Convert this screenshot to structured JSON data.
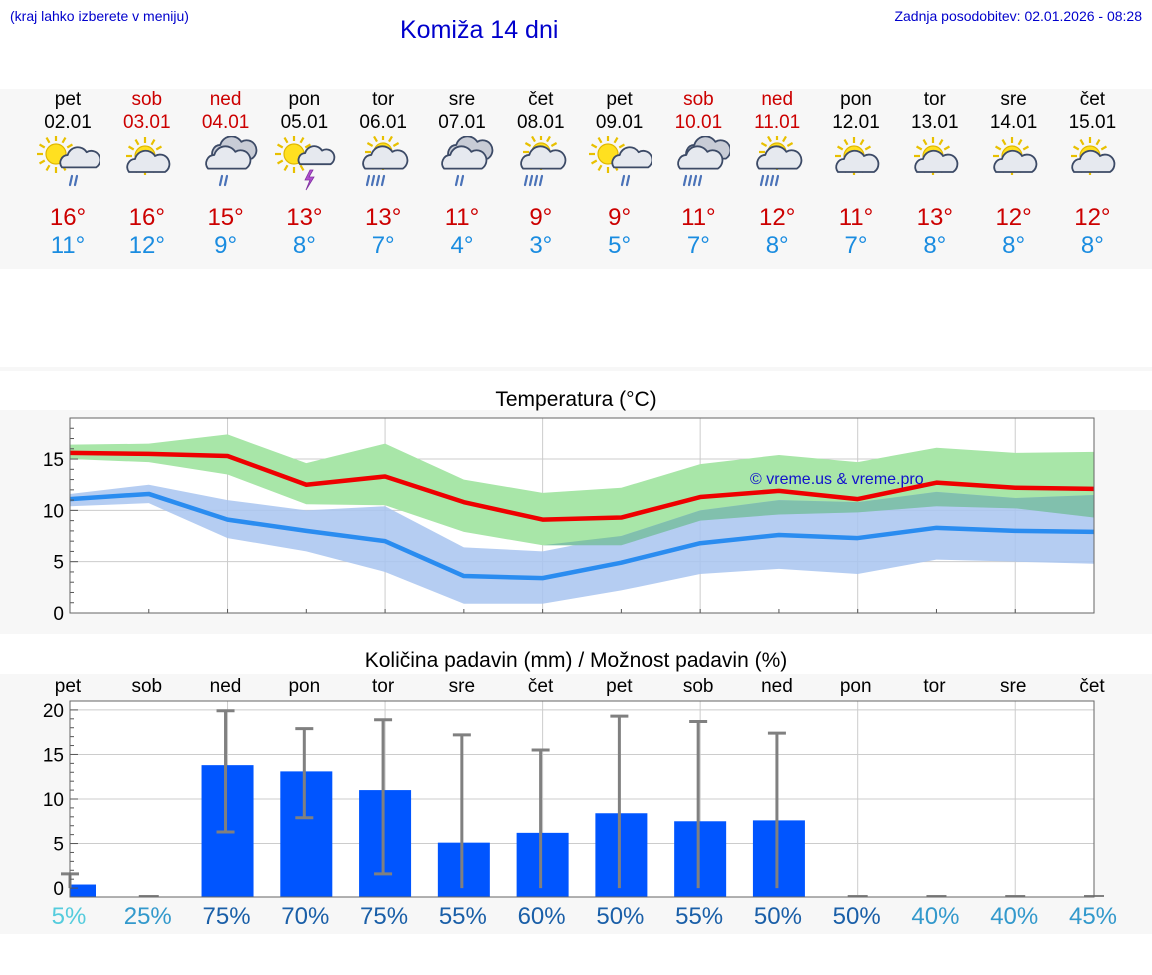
{
  "header": {
    "menu_hint": "(kraj lahko izberete v meniju)",
    "title": "Komiža 14 dni",
    "updated": "Zadnja posodobitev: 02.01.2026 - 08:28"
  },
  "days": [
    {
      "name": "pet",
      "date": "02.01",
      "weekend": false,
      "icon": "sun-cloud-rain-icon",
      "tmax": "16°",
      "tmin": "11°"
    },
    {
      "name": "sob",
      "date": "03.01",
      "weekend": true,
      "icon": "sun-cloud-icon",
      "tmax": "16°",
      "tmin": "12°"
    },
    {
      "name": "ned",
      "date": "04.01",
      "weekend": true,
      "icon": "cloud-rain-icon",
      "tmax": "15°",
      "tmin": "9°"
    },
    {
      "name": "pon",
      "date": "05.01",
      "weekend": false,
      "icon": "sun-cloud-thunder-icon",
      "tmax": "13°",
      "tmin": "8°"
    },
    {
      "name": "tor",
      "date": "06.01",
      "weekend": false,
      "icon": "sun-cloud-heavy-rain-icon",
      "tmax": "13°",
      "tmin": "7°"
    },
    {
      "name": "sre",
      "date": "07.01",
      "weekend": false,
      "icon": "cloud-rain-icon",
      "tmax": "11°",
      "tmin": "4°"
    },
    {
      "name": "čet",
      "date": "08.01",
      "weekend": false,
      "icon": "sun-cloud-heavy-rain-icon",
      "tmax": "9°",
      "tmin": "3°"
    },
    {
      "name": "pet",
      "date": "09.01",
      "weekend": false,
      "icon": "sun-cloud-rain-icon",
      "tmax": "9°",
      "tmin": "5°"
    },
    {
      "name": "sob",
      "date": "10.01",
      "weekend": true,
      "icon": "cloud-heavy-rain-icon",
      "tmax": "11°",
      "tmin": "7°"
    },
    {
      "name": "ned",
      "date": "11.01",
      "weekend": true,
      "icon": "sun-cloud-heavy-rain-icon",
      "tmax": "12°",
      "tmin": "8°"
    },
    {
      "name": "pon",
      "date": "12.01",
      "weekend": false,
      "icon": "sun-cloud-icon",
      "tmax": "11°",
      "tmin": "7°"
    },
    {
      "name": "tor",
      "date": "13.01",
      "weekend": false,
      "icon": "sun-cloud-icon",
      "tmax": "13°",
      "tmin": "8°"
    },
    {
      "name": "sre",
      "date": "14.01",
      "weekend": false,
      "icon": "sun-cloud-icon",
      "tmax": "12°",
      "tmin": "8°"
    },
    {
      "name": "čet",
      "date": "15.01",
      "weekend": false,
      "icon": "sun-cloud-icon",
      "tmax": "12°",
      "tmin": "8°"
    }
  ],
  "colors": {
    "max_line": "#ee0000",
    "min_line": "#2a8cf0",
    "max_band": "#a8e6a8",
    "min_band": "#a8c4f0",
    "overlap_band": "#7cbfa6",
    "bar": "#0055ff",
    "errorbar": "#808080"
  },
  "chart_data": [
    {
      "type": "line",
      "title": "Temperatura (°C)",
      "watermark": "© vreme.us & vreme.pro",
      "categories": [
        "pet",
        "sob",
        "ned",
        "pon",
        "tor",
        "sre",
        "čet",
        "pet",
        "sob",
        "ned",
        "pon",
        "tor",
        "sre",
        "čet"
      ],
      "ylim": [
        0,
        19
      ],
      "yticks": [
        0,
        5,
        10,
        15
      ],
      "series": [
        {
          "name": "max",
          "values": [
            15.6,
            15.5,
            15.3,
            12.5,
            13.3,
            10.8,
            9.1,
            9.3,
            11.3,
            11.9,
            11.1,
            12.7,
            12.2,
            12.1
          ]
        },
        {
          "name": "min",
          "values": [
            11.1,
            11.6,
            9.1,
            8.0,
            7.0,
            3.6,
            3.4,
            4.9,
            6.8,
            7.6,
            7.3,
            8.3,
            8.0,
            7.9
          ]
        }
      ],
      "max_band": {
        "upper": [
          16.4,
          16.5,
          17.4,
          14.6,
          16.5,
          13.0,
          11.7,
          12.2,
          14.5,
          15.4,
          14.7,
          16.1,
          15.6,
          15.7
        ],
        "lower": [
          15.0,
          14.7,
          13.5,
          10.6,
          10.5,
          7.9,
          6.6,
          6.6,
          9.0,
          9.6,
          9.8,
          10.4,
          10.2,
          9.3
        ]
      },
      "min_band": {
        "upper": [
          11.6,
          12.5,
          11.0,
          10.0,
          10.4,
          6.4,
          6.0,
          7.5,
          10.0,
          11.0,
          10.8,
          11.8,
          11.2,
          11.5
        ],
        "lower": [
          10.4,
          10.7,
          7.3,
          6.0,
          4.0,
          0.9,
          0.9,
          2.2,
          3.8,
          4.3,
          3.8,
          5.2,
          5.0,
          4.8
        ]
      }
    },
    {
      "type": "bar",
      "title": "Količina padavin (mm) / Možnost padavin (%)",
      "categories": [
        "pet",
        "sob",
        "ned",
        "pon",
        "tor",
        "sre",
        "čet",
        "pet",
        "sob",
        "ned",
        "pon",
        "tor",
        "sre",
        "čet"
      ],
      "ylim": [
        -1,
        21
      ],
      "yticks": [
        0,
        5,
        10,
        15,
        20
      ],
      "values": [
        0.4,
        0,
        13.8,
        13.1,
        11.0,
        5.1,
        6.2,
        8.4,
        7.5,
        7.6,
        0,
        0,
        0,
        0
      ],
      "error_low": [
        0,
        0,
        6.3,
        7.9,
        1.6,
        0,
        0,
        0,
        0,
        0,
        0,
        0,
        0,
        0
      ],
      "error_high": [
        1.6,
        0,
        19.9,
        17.9,
        18.9,
        17.2,
        15.5,
        19.3,
        18.7,
        17.4,
        0,
        0,
        0,
        0
      ],
      "probability": [
        "5%",
        "25%",
        "75%",
        "70%",
        "75%",
        "55%",
        "60%",
        "50%",
        "55%",
        "50%",
        "50%",
        "40%",
        "40%",
        "45%"
      ],
      "probability_colors": [
        "#55ccdd",
        "#3399cc",
        "#1a5fa8",
        "#1a5fa8",
        "#1a5fa8",
        "#1a5fa8",
        "#1a5fa8",
        "#1a5fa8",
        "#1a5fa8",
        "#1a5fa8",
        "#1a5fa8",
        "#3399cc",
        "#3399cc",
        "#3399cc"
      ]
    }
  ]
}
